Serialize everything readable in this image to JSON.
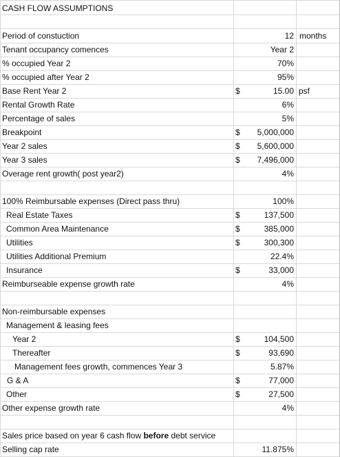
{
  "title": "CASH FLOW ASSUMPTIONS",
  "rows": [
    {
      "label": "Period of constuction",
      "value": "12",
      "unit": "months"
    },
    {
      "label": "Tenant occupancy comences",
      "value": "Year 2"
    },
    {
      "label": "% occupied Year 2",
      "value": "70%"
    },
    {
      "label": "% occupied after Year 2",
      "value": "95%"
    },
    {
      "label": "Base Rent Year 2",
      "dollar": "$",
      "value": "15.00",
      "unit": "psf"
    },
    {
      "label": "Rental Growth Rate",
      "value": "6%"
    },
    {
      "label": "Percentage of sales",
      "value": "5%"
    },
    {
      "label": "Breakpoint",
      "dollar": "$",
      "value": "5,000,000"
    },
    {
      "label": "Year 2 sales",
      "dollar": "$",
      "value": "5,600,000"
    },
    {
      "label": "Year 3 sales",
      "dollar": "$",
      "value": "7,496,000"
    },
    {
      "label": "Overage rent growth( post year2)",
      "value": "4%"
    },
    {
      "label": "100% Reimbursable expenses (Direct pass thru)",
      "value": "100%"
    },
    {
      "label": "Real Estate Taxes",
      "dollar": "$",
      "value": "137,500"
    },
    {
      "label": "Common Area Maintenance",
      "dollar": "$",
      "value": "385,000"
    },
    {
      "label": "Utilities",
      "dollar": "$",
      "value": "300,300"
    },
    {
      "label": "Utilities Additional Premium",
      "value": "22.4%"
    },
    {
      "label": "Insurance",
      "dollar": "$",
      "value": "33,000"
    },
    {
      "label": "Reimburseable expense growth rate",
      "value": "4%"
    },
    {
      "label": "Non-reimbursable expenses"
    },
    {
      "label": "Management & leasing fees"
    },
    {
      "label": "Year 2",
      "dollar": "$",
      "value": "104,500"
    },
    {
      "label": "Thereafter",
      "dollar": "$",
      "value": "93,690"
    },
    {
      "label": "Management fees growth, commences Year 3",
      "value": "5.87%"
    },
    {
      "label": "G & A",
      "dollar": "$",
      "value": "77,000"
    },
    {
      "label": "Other",
      "dollar": "$",
      "value": "27,500"
    },
    {
      "label": "Other expense growth rate",
      "value": "4%"
    },
    {
      "label_pre": "Sales price based on year 6 cash flow ",
      "label_bold": "before",
      "label_post": " debt service"
    },
    {
      "label": "Selling cap rate",
      "value": "11.875%"
    }
  ]
}
